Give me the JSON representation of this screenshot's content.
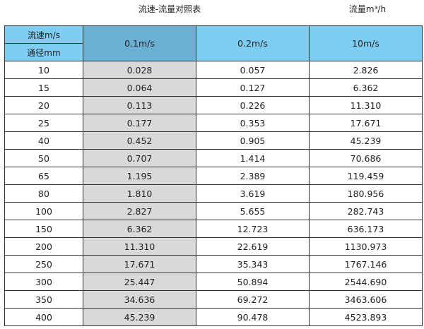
{
  "title": "流速-流量对照表",
  "unit_label": "流量m³/h",
  "header": {
    "velocity_label": "流速m/s",
    "diameter_label": "通径mm",
    "columns": [
      "0.1m/s",
      "0.2m/s",
      "10m/s"
    ]
  },
  "colors": {
    "header": "#7ecef4",
    "selected_header": "#6aafd4",
    "selected_column": "#d9d9d9"
  },
  "rows": [
    [
      "10",
      "0.028",
      "0.057",
      "2.826"
    ],
    [
      "15",
      "0.064",
      "0.127",
      "6.362"
    ],
    [
      "20",
      "0.113",
      "0.226",
      "11.310"
    ],
    [
      "25",
      "0.177",
      "0.353",
      "17.671"
    ],
    [
      "40",
      "0.452",
      "0.905",
      "45.239"
    ],
    [
      "50",
      "0.707",
      "1.414",
      "70.686"
    ],
    [
      "65",
      "1.195",
      "2.389",
      "119.459"
    ],
    [
      "80",
      "1.810",
      "3.619",
      "180.956"
    ],
    [
      "100",
      "2.827",
      "5.655",
      "282.743"
    ],
    [
      "150",
      "6.362",
      "12.723",
      "636.173"
    ],
    [
      "200",
      "11.310",
      "22.619",
      "1130.973"
    ],
    [
      "250",
      "17.671",
      "35.343",
      "1767.146"
    ],
    [
      "300",
      "25.447",
      "50.894",
      "2544.690"
    ],
    [
      "350",
      "34.636",
      "69.272",
      "3463.606"
    ],
    [
      "400",
      "45.239",
      "90.478",
      "4523.893"
    ]
  ]
}
